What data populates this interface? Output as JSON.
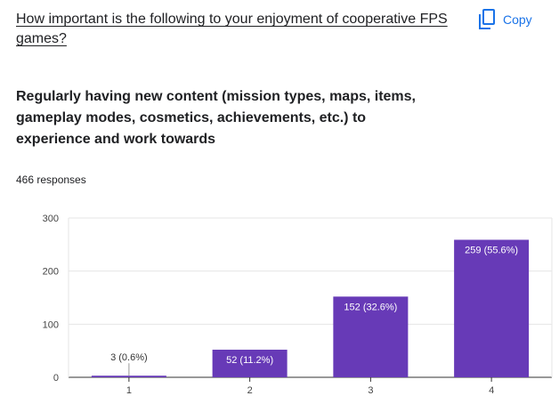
{
  "question": {
    "title": "How important is the following to your enjoyment of cooperative FPS games?"
  },
  "toolbar": {
    "copy_label": "Copy",
    "copy_icon": "copy-icon",
    "accent_color": "#1a73e8"
  },
  "sub_question": "Regularly having new content (mission types, maps, items, gameplay modes, cosmetics, achievements, etc.) to experience and work towards",
  "responses_text": "466 responses",
  "chart_data": {
    "type": "bar",
    "categories": [
      "1",
      "2",
      "3",
      "4"
    ],
    "values": [
      3,
      52,
      152,
      259
    ],
    "data_labels": [
      "3 (0.6%)",
      "52 (11.2%)",
      "152 (32.6%)",
      "259 (55.6%)"
    ],
    "yticks": [
      0,
      100,
      200,
      300
    ],
    "ylim": [
      0,
      300
    ],
    "title": "",
    "xlabel": "",
    "ylabel": "",
    "grid": true,
    "bar_color": "#673ab7"
  }
}
